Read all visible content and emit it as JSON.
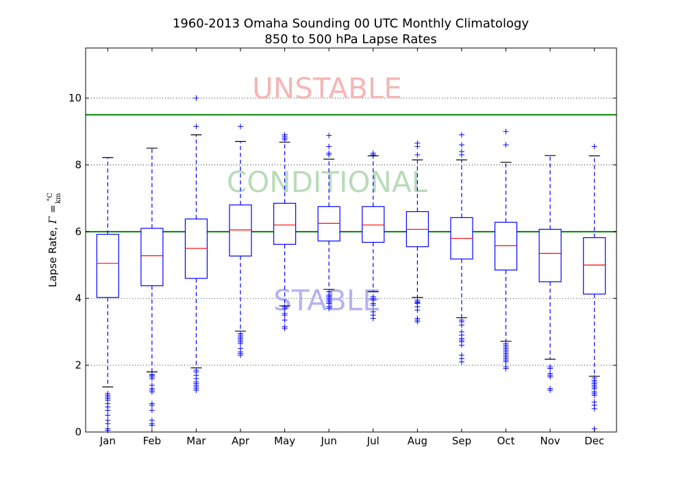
{
  "chart_data": {
    "type": "box",
    "title": "1960-2013 Omaha Sounding 00 UTC Monthly Climatology",
    "subtitle": "850 to 500 hPa Lapse Rates",
    "ylabel": "Lapse Rate, Γ = °C/km",
    "ylabel_text": "Lapse Rate, ",
    "ylabel_gamma": "Γ",
    "ylabel_eq": " = ",
    "ylabel_num": "°C",
    "ylabel_den": "km",
    "xlabel": "",
    "ylim": [
      0,
      11.5
    ],
    "yticks": [
      0,
      2,
      4,
      6,
      8,
      10
    ],
    "grid": "horizontal-dotted",
    "reference_lines": [
      {
        "y": 9.5,
        "color": "#008000"
      },
      {
        "y": 6.0,
        "color": "#008000"
      }
    ],
    "region_labels": [
      {
        "text": "UNSTABLE",
        "y": 10.3,
        "color": "#f4b6b6"
      },
      {
        "text": "CONDITIONAL",
        "y": 7.5,
        "color": "#b9dbb9"
      },
      {
        "text": "STABLE",
        "y": 3.95,
        "color": "#b3b3f2"
      }
    ],
    "colors": {
      "box": "#0000ff",
      "median": "#ff0000",
      "cap": "#000000",
      "outlier": "#0000ff"
    },
    "categories": [
      "Jan",
      "Feb",
      "Mar",
      "Apr",
      "May",
      "Jun",
      "Jul",
      "Aug",
      "Sep",
      "Oct",
      "Nov",
      "Dec"
    ],
    "boxes": [
      {
        "label": "Jan",
        "whislo": 1.35,
        "q1": 4.03,
        "med": 5.05,
        "q3": 5.92,
        "whishi": 8.22,
        "fliers": [
          1.15,
          1.1,
          1.05,
          1.0,
          0.95,
          0.85,
          0.75,
          0.65,
          0.5,
          0.35,
          0.25,
          0.1,
          0.05
        ]
      },
      {
        "label": "Feb",
        "whislo": 1.8,
        "q1": 4.38,
        "med": 5.28,
        "q3": 6.1,
        "whishi": 8.5,
        "fliers": [
          1.72,
          1.7,
          1.65,
          1.6,
          1.4,
          1.3,
          1.25,
          1.2,
          0.85,
          0.8,
          0.65,
          0.35,
          0.25,
          0.2
        ]
      },
      {
        "label": "Mar",
        "whislo": 1.92,
        "q1": 4.6,
        "med": 5.5,
        "q3": 6.38,
        "whishi": 8.9,
        "fliers": [
          9.15,
          10.0,
          1.85,
          1.8,
          1.7,
          1.6,
          1.5,
          1.45,
          1.4,
          1.35,
          1.3,
          1.25
        ]
      },
      {
        "label": "Apr",
        "whislo": 3.02,
        "q1": 5.27,
        "med": 6.05,
        "q3": 6.8,
        "whishi": 8.7,
        "fliers": [
          9.15,
          2.95,
          2.9,
          2.85,
          2.8,
          2.75,
          2.7,
          2.65,
          2.5,
          2.4,
          2.35,
          2.3
        ]
      },
      {
        "label": "May",
        "whislo": 3.78,
        "q1": 5.62,
        "med": 6.2,
        "q3": 6.85,
        "whishi": 8.68,
        "fliers": [
          8.9,
          8.85,
          8.8,
          8.75,
          3.75,
          3.7,
          3.55,
          3.5,
          3.35,
          3.15,
          3.1
        ]
      },
      {
        "label": "Jun",
        "whislo": 4.27,
        "q1": 5.72,
        "med": 6.25,
        "q3": 6.75,
        "whishi": 8.17,
        "fliers": [
          8.88,
          8.55,
          8.35,
          8.3,
          4.2,
          4.1,
          4.05,
          4.0,
          3.95,
          3.9,
          3.85,
          3.75,
          3.7
        ]
      },
      {
        "label": "Jul",
        "whislo": 4.2,
        "q1": 5.68,
        "med": 6.2,
        "q3": 6.75,
        "whishi": 8.27,
        "fliers": [
          8.35,
          8.3,
          4.05,
          4.0,
          3.95,
          3.85,
          3.8,
          3.6,
          3.5,
          3.4
        ]
      },
      {
        "label": "Aug",
        "whislo": 4.03,
        "q1": 5.55,
        "med": 6.07,
        "q3": 6.6,
        "whishi": 8.15,
        "fliers": [
          8.65,
          8.55,
          8.3,
          3.95,
          3.9,
          3.88,
          3.85,
          3.75,
          3.65,
          3.4,
          3.35,
          3.3
        ]
      },
      {
        "label": "Sep",
        "whislo": 3.42,
        "q1": 5.18,
        "med": 5.8,
        "q3": 6.42,
        "whishi": 8.15,
        "fliers": [
          8.9,
          8.6,
          8.4,
          8.3,
          3.35,
          3.3,
          3.2,
          3.0,
          2.9,
          2.8,
          2.75,
          2.7,
          2.6,
          2.3,
          2.2,
          2.1
        ]
      },
      {
        "label": "Oct",
        "whislo": 2.72,
        "q1": 4.85,
        "med": 5.58,
        "q3": 6.28,
        "whishi": 8.08,
        "fliers": [
          9.0,
          8.6,
          2.65,
          2.6,
          2.55,
          2.5,
          2.45,
          2.4,
          2.35,
          2.3,
          2.25,
          2.2,
          2.15,
          2.1,
          1.95,
          1.9
        ]
      },
      {
        "label": "Nov",
        "whislo": 2.18,
        "q1": 4.5,
        "med": 5.35,
        "q3": 6.07,
        "whishi": 8.28,
        "fliers": [
          1.95,
          1.9,
          1.75,
          1.7,
          1.65,
          1.3,
          1.25
        ]
      },
      {
        "label": "Dec",
        "whislo": 1.67,
        "q1": 4.13,
        "med": 5.0,
        "q3": 5.82,
        "whishi": 8.27,
        "fliers": [
          8.55,
          1.62,
          1.55,
          1.5,
          1.45,
          1.4,
          1.35,
          1.3,
          1.2,
          1.15,
          1.1,
          0.9,
          0.8,
          0.7,
          0.1
        ]
      }
    ]
  }
}
